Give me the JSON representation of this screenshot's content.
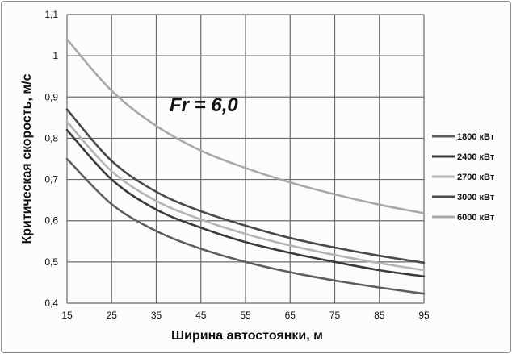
{
  "chart_data": {
    "type": "line",
    "title": "",
    "xlabel": "Ширина автостоянки, м",
    "ylabel": "Критическая скорость, м/с",
    "xlim": [
      15,
      95
    ],
    "ylim": [
      0.4,
      1.1
    ],
    "x_ticks": [
      "15",
      "25",
      "35",
      "45",
      "55",
      "65",
      "75",
      "85",
      "95"
    ],
    "y_ticks": [
      "0,4",
      "0,5",
      "0,6",
      "0,7",
      "0,8",
      "0,9",
      "1",
      "1,1"
    ],
    "grid": true,
    "legend_position": "right",
    "annotation": "Fr = 6,0",
    "x": [
      15,
      25,
      35,
      45,
      55,
      65,
      75,
      85,
      95
    ],
    "series": [
      {
        "name": "1800 кВт",
        "color": "#5e5e5e",
        "values": [
          0.75,
          0.64,
          0.575,
          0.532,
          0.5,
          0.475,
          0.455,
          0.438,
          0.423
        ]
      },
      {
        "name": "2400 кВт",
        "color": "#3a3a3a",
        "values": [
          0.82,
          0.7,
          0.627,
          0.583,
          0.548,
          0.522,
          0.5,
          0.48,
          0.465
        ]
      },
      {
        "name": "2700 кВт",
        "color": "#b5b5b5",
        "values": [
          0.84,
          0.72,
          0.648,
          0.603,
          0.568,
          0.54,
          0.517,
          0.497,
          0.48
        ]
      },
      {
        "name": "3000 кВт",
        "color": "#4a4a4a",
        "values": [
          0.87,
          0.745,
          0.67,
          0.623,
          0.588,
          0.558,
          0.535,
          0.515,
          0.498
        ]
      },
      {
        "name": "6000 кВт",
        "color": "#a8a8a8",
        "values": [
          1.04,
          0.915,
          0.83,
          0.77,
          0.728,
          0.693,
          0.664,
          0.639,
          0.618
        ]
      }
    ]
  }
}
